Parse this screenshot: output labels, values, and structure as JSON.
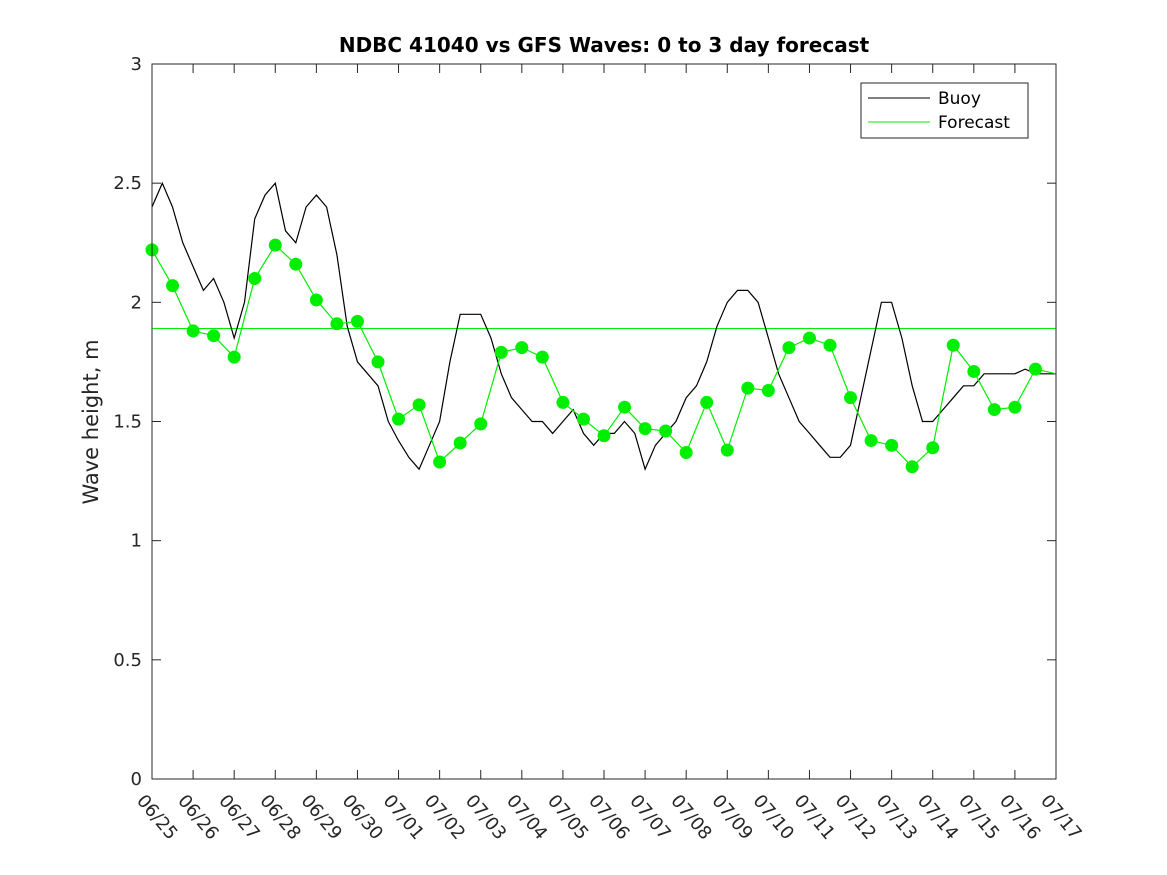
{
  "chart_data": {
    "type": "line",
    "title": "NDBC 41040 vs GFS Waves: 0 to 3 day forecast",
    "xlabel": "",
    "ylabel": "Wave height, m",
    "xlim": [
      "06/25",
      "07/17"
    ],
    "ylim": [
      0,
      3
    ],
    "yticks": [
      "0",
      "0.5",
      "1",
      "1.5",
      "2",
      "2.5",
      "3"
    ],
    "xticks": [
      "06/25",
      "06/26",
      "06/27",
      "06/28",
      "06/29",
      "06/30",
      "07/01",
      "07/02",
      "07/03",
      "07/04",
      "07/05",
      "07/06",
      "07/07",
      "07/08",
      "07/09",
      "07/10",
      "07/11",
      "07/12",
      "07/13",
      "07/14",
      "07/15",
      "07/16",
      "07/17"
    ],
    "grid": false,
    "legend": {
      "placement": "top-right",
      "entries": [
        "Buoy",
        "Forecast"
      ]
    },
    "colors": {
      "buoy": "#000000",
      "forecast": "#00ee00",
      "marker": "#00ee00",
      "axes": "#262626"
    },
    "mean_line": {
      "name": "",
      "value": 1.89
    },
    "series": [
      {
        "name": "Buoy",
        "x_days": [
          0.0,
          0.25,
          0.5,
          0.75,
          1.0,
          1.25,
          1.5,
          1.75,
          2.0,
          2.25,
          2.5,
          2.75,
          3.0,
          3.25,
          3.5,
          3.75,
          4.0,
          4.25,
          4.5,
          4.75,
          5.0,
          5.25,
          5.5,
          5.75,
          6.0,
          6.25,
          6.5,
          6.75,
          7.0,
          7.25,
          7.5,
          7.75,
          8.0,
          8.25,
          8.5,
          8.75,
          9.0,
          9.25,
          9.5,
          9.75,
          10.0,
          10.25,
          10.5,
          10.75,
          11.0,
          11.25,
          11.5,
          11.75,
          12.0,
          12.25,
          12.5,
          12.75,
          13.0,
          13.25,
          13.5,
          13.75,
          14.0,
          14.25,
          14.5,
          14.75,
          15.0,
          15.25,
          15.5,
          15.75,
          16.0,
          16.25,
          16.5,
          16.75,
          17.0,
          17.25,
          17.5,
          17.75,
          18.0,
          18.25,
          18.5,
          18.75,
          19.0,
          19.25,
          19.5,
          19.75,
          20.0,
          20.25,
          20.5,
          20.75,
          21.0,
          21.25,
          21.5,
          21.75,
          22.0
        ],
        "values": [
          2.4,
          2.5,
          2.4,
          2.25,
          2.15,
          2.05,
          2.1,
          2.0,
          1.85,
          2.0,
          2.35,
          2.45,
          2.5,
          2.3,
          2.25,
          2.4,
          2.45,
          2.4,
          2.2,
          1.9,
          1.75,
          1.7,
          1.65,
          1.5,
          1.42,
          1.35,
          1.3,
          1.4,
          1.5,
          1.75,
          1.95,
          1.95,
          1.95,
          1.85,
          1.7,
          1.6,
          1.55,
          1.5,
          1.5,
          1.45,
          1.5,
          1.55,
          1.45,
          1.4,
          1.45,
          1.45,
          1.5,
          1.45,
          1.3,
          1.4,
          1.45,
          1.5,
          1.6,
          1.65,
          1.75,
          1.9,
          2.0,
          2.05,
          2.05,
          2.0,
          1.85,
          1.7,
          1.6,
          1.5,
          1.45,
          1.4,
          1.35,
          1.35,
          1.4,
          1.6,
          1.8,
          2.0,
          2.0,
          1.85,
          1.65,
          1.5,
          1.5,
          1.55,
          1.6,
          1.65,
          1.65,
          1.7,
          1.7,
          1.7,
          1.7,
          1.72,
          1.7,
          1.7,
          1.7
        ]
      },
      {
        "name": "Forecast",
        "x_days": [
          0.0,
          0.5,
          1.0,
          1.5,
          2.0,
          2.5,
          3.0,
          3.5,
          4.0,
          4.5,
          5.0,
          5.5,
          6.0,
          6.5,
          7.0,
          7.5,
          8.0,
          8.5,
          9.0,
          9.5,
          10.0,
          10.5,
          11.0,
          11.5,
          12.0,
          12.5,
          13.0,
          13.5,
          14.0,
          14.5,
          15.0,
          15.5,
          16.0,
          16.5,
          17.0,
          17.5,
          18.0,
          18.5,
          19.0,
          19.5,
          20.0,
          20.5,
          21.0,
          21.5,
          22.0
        ],
        "values": [
          2.22,
          2.07,
          1.88,
          1.86,
          1.77,
          2.1,
          2.24,
          2.16,
          2.01,
          1.91,
          1.92,
          1.75,
          1.51,
          1.57,
          1.33,
          1.41,
          1.49,
          1.79,
          1.81,
          1.77,
          1.58,
          1.51,
          1.44,
          1.56,
          1.47,
          1.46,
          1.37,
          1.58,
          1.38,
          1.64,
          1.63,
          1.81,
          1.85,
          1.82,
          1.6,
          1.42,
          1.4,
          1.31,
          1.39,
          1.82,
          1.71,
          1.55,
          1.56,
          1.72,
          1.7
        ]
      }
    ],
    "markers": {
      "x_days": [
        0.0,
        0.5,
        1.0,
        1.5,
        2.0,
        2.5,
        3.0,
        3.5,
        4.0,
        4.5,
        5.0,
        5.5,
        6.0,
        6.5,
        7.0,
        7.5,
        8.0,
        8.5,
        9.0,
        9.5,
        10.0,
        10.5,
        11.0,
        11.5,
        12.0,
        12.5,
        13.0,
        13.5,
        14.0,
        14.5,
        15.0,
        15.5,
        16.0,
        16.5,
        17.0,
        17.5,
        18.0,
        18.5,
        19.0,
        19.5,
        20.0,
        20.5,
        21.0,
        21.5
      ],
      "values": [
        2.22,
        2.07,
        1.88,
        1.86,
        1.77,
        2.1,
        2.24,
        2.16,
        2.01,
        1.91,
        1.92,
        1.75,
        1.51,
        1.57,
        1.33,
        1.41,
        1.49,
        1.79,
        1.81,
        1.77,
        1.58,
        1.51,
        1.44,
        1.56,
        1.47,
        1.46,
        1.37,
        1.58,
        1.38,
        1.64,
        1.63,
        1.81,
        1.85,
        1.82,
        1.6,
        1.42,
        1.4,
        1.31,
        1.39,
        1.82,
        1.71,
        1.55,
        1.56,
        1.72
      ]
    }
  }
}
